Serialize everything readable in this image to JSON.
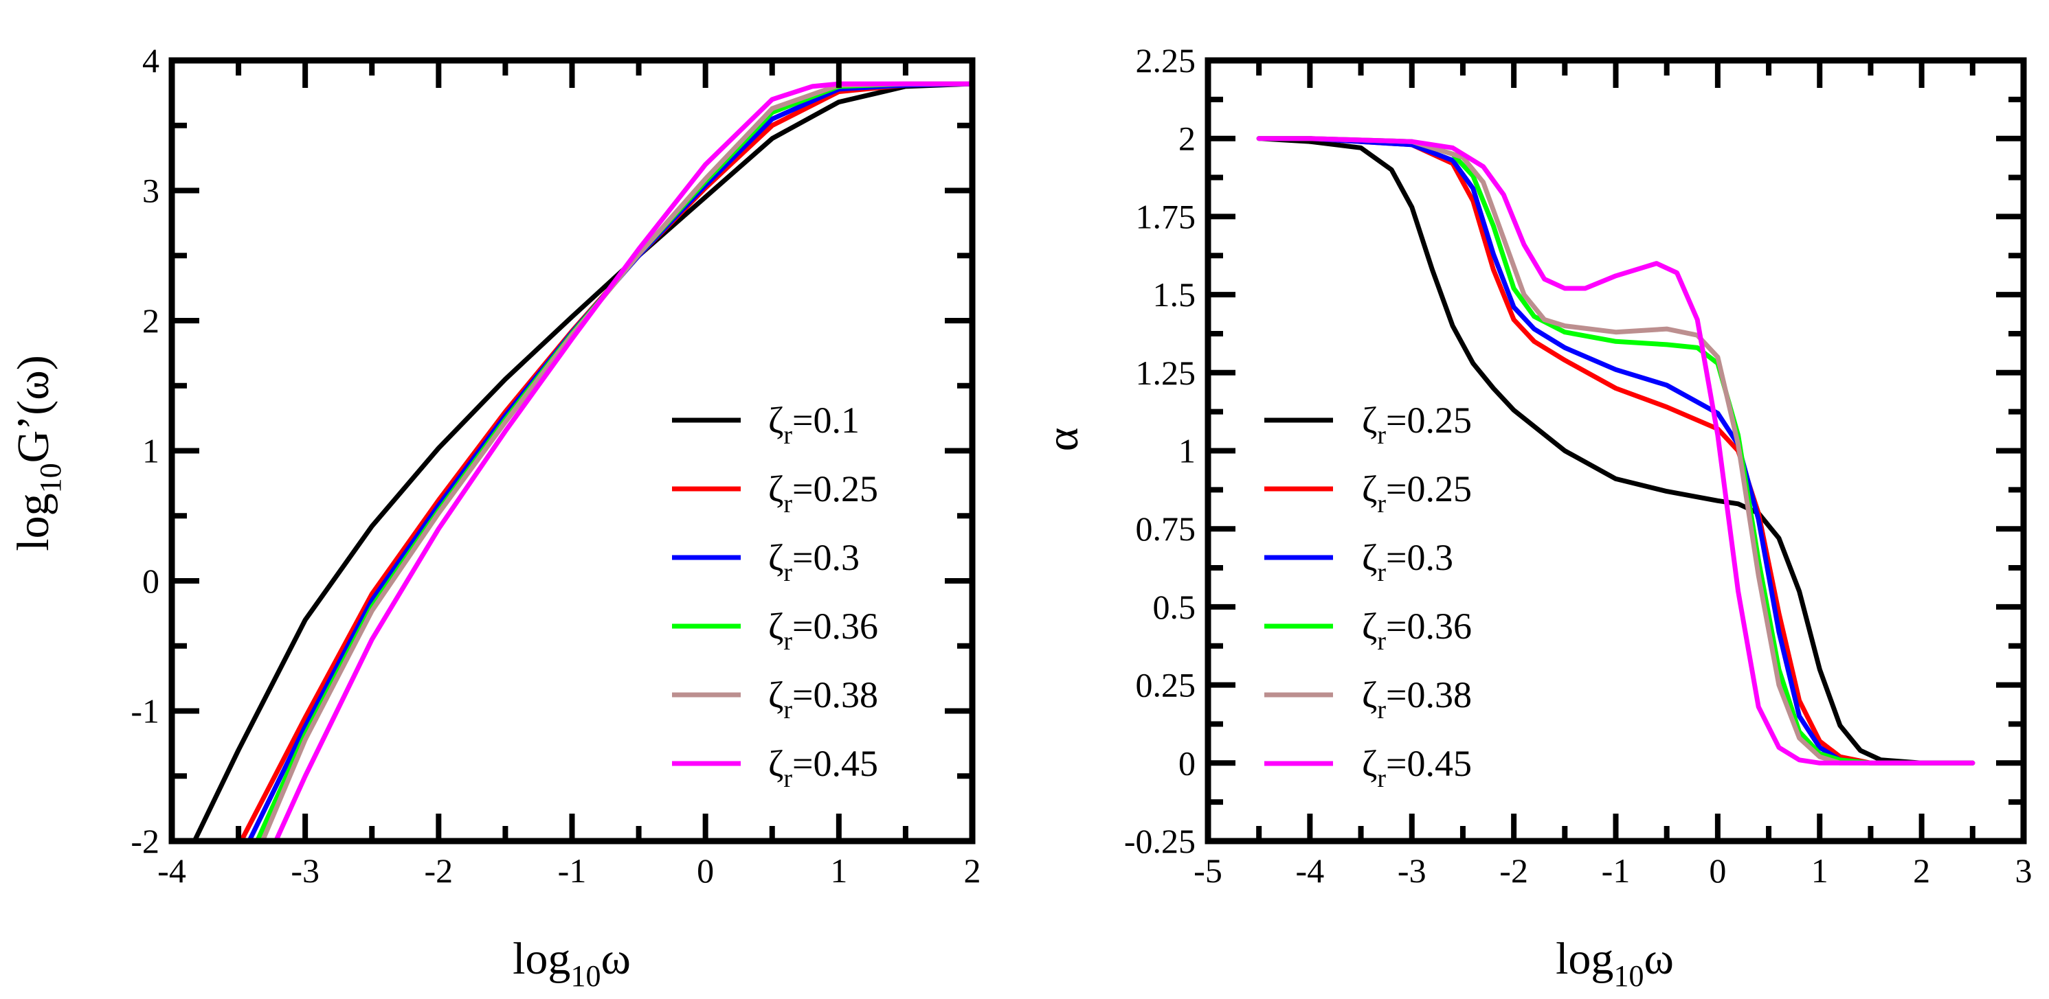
{
  "chart_data": [
    {
      "type": "line",
      "title": "",
      "xlabel": {
        "base": "log",
        "sub": "10",
        "rest": "ω"
      },
      "ylabel": {
        "base": "log",
        "sub": "10",
        "rest": "G’(ω)"
      },
      "xlim": [
        -4,
        2
      ],
      "ylim": [
        -2,
        4
      ],
      "x_major_ticks": [
        -4,
        -3,
        -2,
        -1,
        0,
        1,
        2
      ],
      "y_major_ticks": [
        -2,
        -1,
        0,
        1,
        2,
        3,
        4
      ],
      "x_tick_labels": [
        "-4",
        "-3",
        "-2",
        "-1",
        "0",
        "1",
        "2"
      ],
      "y_tick_labels": [
        "-2",
        "-1",
        "0",
        "1",
        "2",
        "3",
        "4"
      ],
      "legend_position": "lower-right",
      "series": [
        {
          "name": "ζr=0.1",
          "symbol": "ζ",
          "sub": "r",
          "value_text": "=0.1",
          "color": "#000000",
          "x": [
            -3.83,
            -3.5,
            -3.0,
            -2.5,
            -2.0,
            -1.5,
            -1.0,
            -0.5,
            0.0,
            0.5,
            1.0,
            1.5,
            2.0
          ],
          "y": [
            -2.0,
            -1.3,
            -0.3,
            0.42,
            1.02,
            1.55,
            2.03,
            2.5,
            2.95,
            3.4,
            3.68,
            3.8,
            3.82
          ]
        },
        {
          "name": "ζr=0.25",
          "symbol": "ζ",
          "sub": "r",
          "value_text": "=0.25",
          "color": "#ff0000",
          "x": [
            -3.48,
            -3.0,
            -2.5,
            -2.0,
            -1.5,
            -1.0,
            -0.5,
            0.0,
            0.5,
            1.0,
            1.5,
            2.0
          ],
          "y": [
            -2.0,
            -1.05,
            -0.1,
            0.62,
            1.3,
            1.92,
            2.5,
            3.02,
            3.5,
            3.76,
            3.81,
            3.82
          ]
        },
        {
          "name": "ζr=0.3",
          "symbol": "ζ",
          "sub": "r",
          "value_text": "=0.3",
          "color": "#0000ff",
          "x": [
            -3.42,
            -3.0,
            -2.5,
            -2.0,
            -1.5,
            -1.0,
            -0.5,
            0.0,
            0.5,
            1.0,
            1.5,
            2.0
          ],
          "y": [
            -2.0,
            -1.12,
            -0.15,
            0.58,
            1.27,
            1.91,
            2.5,
            3.04,
            3.55,
            3.78,
            3.81,
            3.82
          ]
        },
        {
          "name": "ζr=0.36",
          "symbol": "ζ",
          "sub": "r",
          "value_text": "=0.36",
          "color": "#00ff00",
          "x": [
            -3.36,
            -3.0,
            -2.5,
            -2.0,
            -1.5,
            -1.0,
            -0.5,
            0.0,
            0.5,
            1.0,
            1.5,
            2.0
          ],
          "y": [
            -2.0,
            -1.18,
            -0.2,
            0.54,
            1.24,
            1.9,
            2.51,
            3.07,
            3.6,
            3.8,
            3.82,
            3.82
          ]
        },
        {
          "name": "ζr=0.38",
          "symbol": "ζ",
          "sub": "r",
          "value_text": "=0.38",
          "color": "#bc8f8f",
          "x": [
            -3.32,
            -3.0,
            -2.5,
            -2.0,
            -1.5,
            -1.0,
            -0.5,
            0.0,
            0.5,
            1.0,
            1.5,
            2.0
          ],
          "y": [
            -2.0,
            -1.22,
            -0.23,
            0.52,
            1.22,
            1.89,
            2.51,
            3.09,
            3.63,
            3.81,
            3.82,
            3.82
          ]
        },
        {
          "name": "ζr=0.45",
          "symbol": "ζ",
          "sub": "r",
          "value_text": "=0.45",
          "color": "#ff00ff",
          "x": [
            -3.22,
            -3.0,
            -2.5,
            -2.0,
            -1.5,
            -1.0,
            -0.5,
            0.0,
            0.5,
            0.8,
            1.0,
            1.5,
            2.0
          ],
          "y": [
            -2.0,
            -1.5,
            -0.45,
            0.4,
            1.15,
            1.86,
            2.55,
            3.2,
            3.7,
            3.8,
            3.82,
            3.82,
            3.82
          ]
        }
      ]
    },
    {
      "type": "line",
      "title": "",
      "xlabel": {
        "base": "log",
        "sub": "10",
        "rest": "ω"
      },
      "ylabel": {
        "base": "α",
        "sub": "",
        "rest": ""
      },
      "xlim": [
        -5,
        3
      ],
      "ylim": [
        -0.25,
        2.25
      ],
      "x_major_ticks": [
        -5,
        -4,
        -3,
        -2,
        -1,
        0,
        1,
        2,
        3
      ],
      "y_major_ticks": [
        -0.25,
        0,
        0.25,
        0.5,
        0.75,
        1,
        1.25,
        1.5,
        1.75,
        2,
        2.25
      ],
      "x_tick_labels": [
        "-5",
        "-4",
        "-3",
        "-2",
        "-1",
        "0",
        "1",
        "2",
        "3"
      ],
      "y_tick_labels": [
        "-0.25",
        "0",
        "0.25",
        "0.5",
        "0.75",
        "1",
        "1.25",
        "1.5",
        "1.75",
        "2",
        "2.25"
      ],
      "legend_position": "center-left",
      "series": [
        {
          "name": "ζr=0.25",
          "symbol": "ζ",
          "sub": "r",
          "value_text": "=0.25",
          "color": "#000000",
          "x": [
            -4.5,
            -4.0,
            -3.5,
            -3.2,
            -3.0,
            -2.8,
            -2.6,
            -2.4,
            -2.2,
            -2.0,
            -1.5,
            -1.0,
            -0.5,
            0.0,
            0.2,
            0.4,
            0.6,
            0.8,
            1.0,
            1.2,
            1.4,
            1.6,
            2.0,
            2.5
          ],
          "y": [
            2.0,
            1.99,
            1.97,
            1.9,
            1.78,
            1.58,
            1.4,
            1.28,
            1.2,
            1.13,
            1.0,
            0.91,
            0.87,
            0.84,
            0.83,
            0.8,
            0.72,
            0.55,
            0.3,
            0.12,
            0.04,
            0.01,
            0.0,
            0.0
          ]
        },
        {
          "name": "ζr=0.25",
          "symbol": "ζ",
          "sub": "r",
          "value_text": "=0.25",
          "color": "#ff0000",
          "x": [
            -4.5,
            -4.0,
            -3.0,
            -2.6,
            -2.4,
            -2.2,
            -2.0,
            -1.8,
            -1.5,
            -1.0,
            -0.5,
            0.0,
            0.2,
            0.4,
            0.6,
            0.8,
            1.0,
            1.2,
            1.5,
            2.0,
            2.5
          ],
          "y": [
            2.0,
            2.0,
            1.98,
            1.92,
            1.8,
            1.58,
            1.42,
            1.35,
            1.29,
            1.2,
            1.14,
            1.07,
            1.0,
            0.8,
            0.48,
            0.2,
            0.07,
            0.02,
            0.0,
            0.0,
            0.0
          ]
        },
        {
          "name": "ζr=0.3",
          "symbol": "ζ",
          "sub": "r",
          "value_text": "=0.3",
          "color": "#0000ff",
          "x": [
            -4.5,
            -4.0,
            -3.0,
            -2.6,
            -2.4,
            -2.2,
            -2.0,
            -1.8,
            -1.5,
            -1.0,
            -0.5,
            0.0,
            0.2,
            0.4,
            0.6,
            0.8,
            1.0,
            1.2,
            1.5,
            2.0,
            2.5
          ],
          "y": [
            2.0,
            2.0,
            1.98,
            1.93,
            1.84,
            1.63,
            1.46,
            1.39,
            1.33,
            1.26,
            1.21,
            1.12,
            1.02,
            0.78,
            0.42,
            0.15,
            0.05,
            0.01,
            0.0,
            0.0,
            0.0
          ]
        },
        {
          "name": "ζr=0.36",
          "symbol": "ζ",
          "sub": "r",
          "value_text": "=0.36",
          "color": "#00ff00",
          "x": [
            -4.5,
            -4.0,
            -3.0,
            -2.6,
            -2.4,
            -2.2,
            -2.0,
            -1.8,
            -1.5,
            -1.0,
            -0.5,
            -0.2,
            0.0,
            0.2,
            0.4,
            0.6,
            0.8,
            1.0,
            1.2,
            1.5,
            2.0,
            2.5
          ],
          "y": [
            2.0,
            2.0,
            1.99,
            1.95,
            1.88,
            1.72,
            1.52,
            1.43,
            1.38,
            1.35,
            1.34,
            1.33,
            1.28,
            1.05,
            0.65,
            0.3,
            0.1,
            0.03,
            0.01,
            0.0,
            0.0,
            0.0
          ]
        },
        {
          "name": "ζr=0.38",
          "symbol": "ζ",
          "sub": "r",
          "value_text": "=0.38",
          "color": "#bc8f8f",
          "x": [
            -4.5,
            -4.0,
            -3.0,
            -2.5,
            -2.3,
            -2.1,
            -1.9,
            -1.7,
            -1.5,
            -1.0,
            -0.5,
            -0.2,
            0.0,
            0.2,
            0.4,
            0.6,
            0.8,
            1.0,
            1.2,
            1.5,
            2.0,
            2.5
          ],
          "y": [
            2.0,
            2.0,
            1.99,
            1.94,
            1.86,
            1.68,
            1.5,
            1.42,
            1.4,
            1.38,
            1.39,
            1.37,
            1.3,
            1.02,
            0.6,
            0.25,
            0.08,
            0.02,
            0.0,
            0.0,
            0.0,
            0.0
          ]
        },
        {
          "name": "ζr=0.45",
          "symbol": "ζ",
          "sub": "r",
          "value_text": "=0.45",
          "color": "#ff00ff",
          "x": [
            -4.5,
            -4.0,
            -3.0,
            -2.6,
            -2.3,
            -2.1,
            -1.9,
            -1.7,
            -1.5,
            -1.3,
            -1.0,
            -0.6,
            -0.4,
            -0.2,
            0.0,
            0.2,
            0.4,
            0.6,
            0.8,
            1.0,
            1.5,
            2.0,
            2.5
          ],
          "y": [
            2.0,
            2.0,
            1.99,
            1.97,
            1.91,
            1.82,
            1.66,
            1.55,
            1.52,
            1.52,
            1.56,
            1.6,
            1.57,
            1.42,
            1.05,
            0.55,
            0.18,
            0.05,
            0.01,
            0.0,
            0.0,
            0.0,
            0.0
          ]
        }
      ]
    }
  ]
}
